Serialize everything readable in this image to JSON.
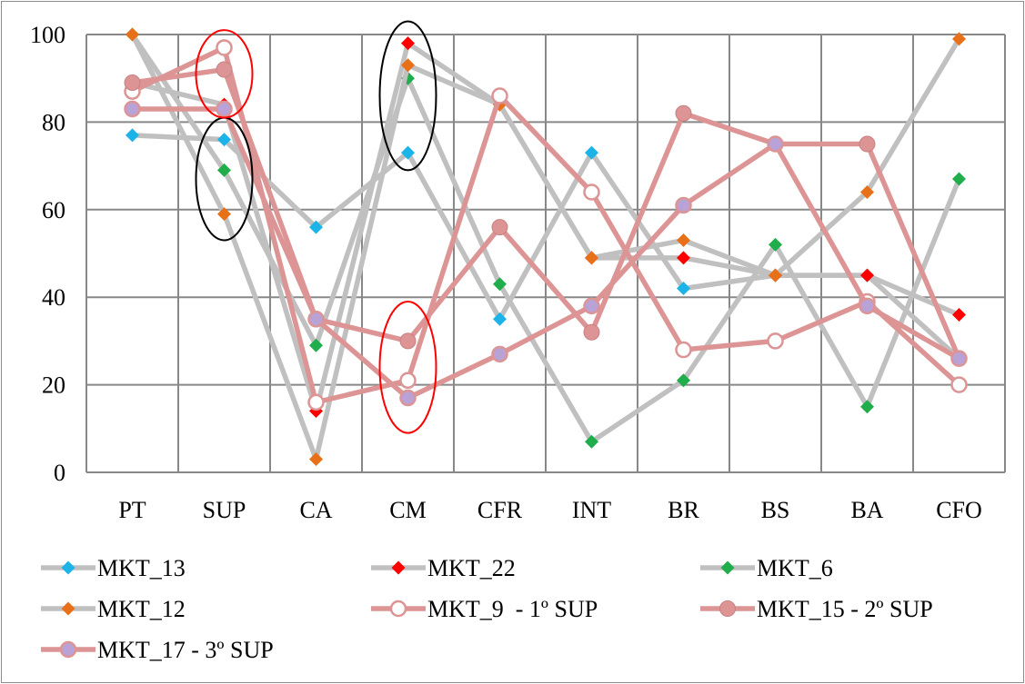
{
  "chart_data": {
    "type": "line",
    "title": "",
    "xlabel": "",
    "ylabel": "",
    "categories": [
      "PT",
      "SUP",
      "CA",
      "CM",
      "CFR",
      "INT",
      "BR",
      "BS",
      "BA",
      "CFO"
    ],
    "ylim": [
      0,
      100
    ],
    "yticks": [
      0,
      20,
      40,
      60,
      80,
      100
    ],
    "grid": true,
    "legend_position": "bottom",
    "series": [
      {
        "name": "MKT_13",
        "values": [
          77,
          76,
          56,
          73,
          35,
          73,
          42,
          45,
          45,
          26
        ],
        "line_color": "#c0c0c0",
        "marker": "diamond",
        "marker_color": "#1cb4e8"
      },
      {
        "name": "MKT_22",
        "values": [
          89,
          84,
          14,
          98,
          84,
          49,
          49,
          45,
          45,
          36
        ],
        "line_color": "#c0c0c0",
        "marker": "diamond",
        "marker_color": "#ff0000"
      },
      {
        "name": "MKT_6",
        "values": [
          100,
          69,
          29,
          90,
          43,
          7,
          21,
          52,
          15,
          67
        ],
        "line_color": "#c0c0c0",
        "marker": "diamond",
        "marker_color": "#1fae4b"
      },
      {
        "name": "MKT_12",
        "values": [
          100,
          59,
          3,
          93,
          84,
          49,
          53,
          45,
          64,
          99
        ],
        "line_color": "#c0c0c0",
        "marker": "diamond",
        "marker_color": "#e87018"
      },
      {
        "name": "MKT_9  - 1º SUP",
        "values": [
          87,
          97,
          16,
          21,
          86,
          64,
          28,
          30,
          39,
          20
        ],
        "line_color": "#dc9494",
        "marker": "circle-open",
        "marker_color": "#dc9494"
      },
      {
        "name": "MKT_15 - 2º SUP",
        "values": [
          89,
          92,
          35,
          30,
          56,
          32,
          82,
          75,
          75,
          26
        ],
        "line_color": "#dc9494",
        "marker": "circle",
        "marker_color": "#dc9494"
      },
      {
        "name": "MKT_17 - 3º SUP",
        "values": [
          83,
          83,
          35,
          17,
          27,
          38,
          61,
          75,
          38,
          26
        ],
        "line_color": "#dc9494",
        "marker": "circle-lavender",
        "marker_color": "#b9a3d6"
      }
    ],
    "annotations": [
      {
        "shape": "ellipse",
        "color": "#000000",
        "category": "SUP",
        "y_center": 67,
        "y_half_span": 14
      },
      {
        "shape": "ellipse",
        "color": "#ff0000",
        "category": "SUP",
        "y_center": 91,
        "y_half_span": 10
      },
      {
        "shape": "ellipse",
        "color": "#000000",
        "category": "CM",
        "y_center": 86,
        "y_half_span": 17
      },
      {
        "shape": "ellipse",
        "color": "#ff0000",
        "category": "CM",
        "y_center": 24,
        "y_half_span": 15
      }
    ]
  }
}
